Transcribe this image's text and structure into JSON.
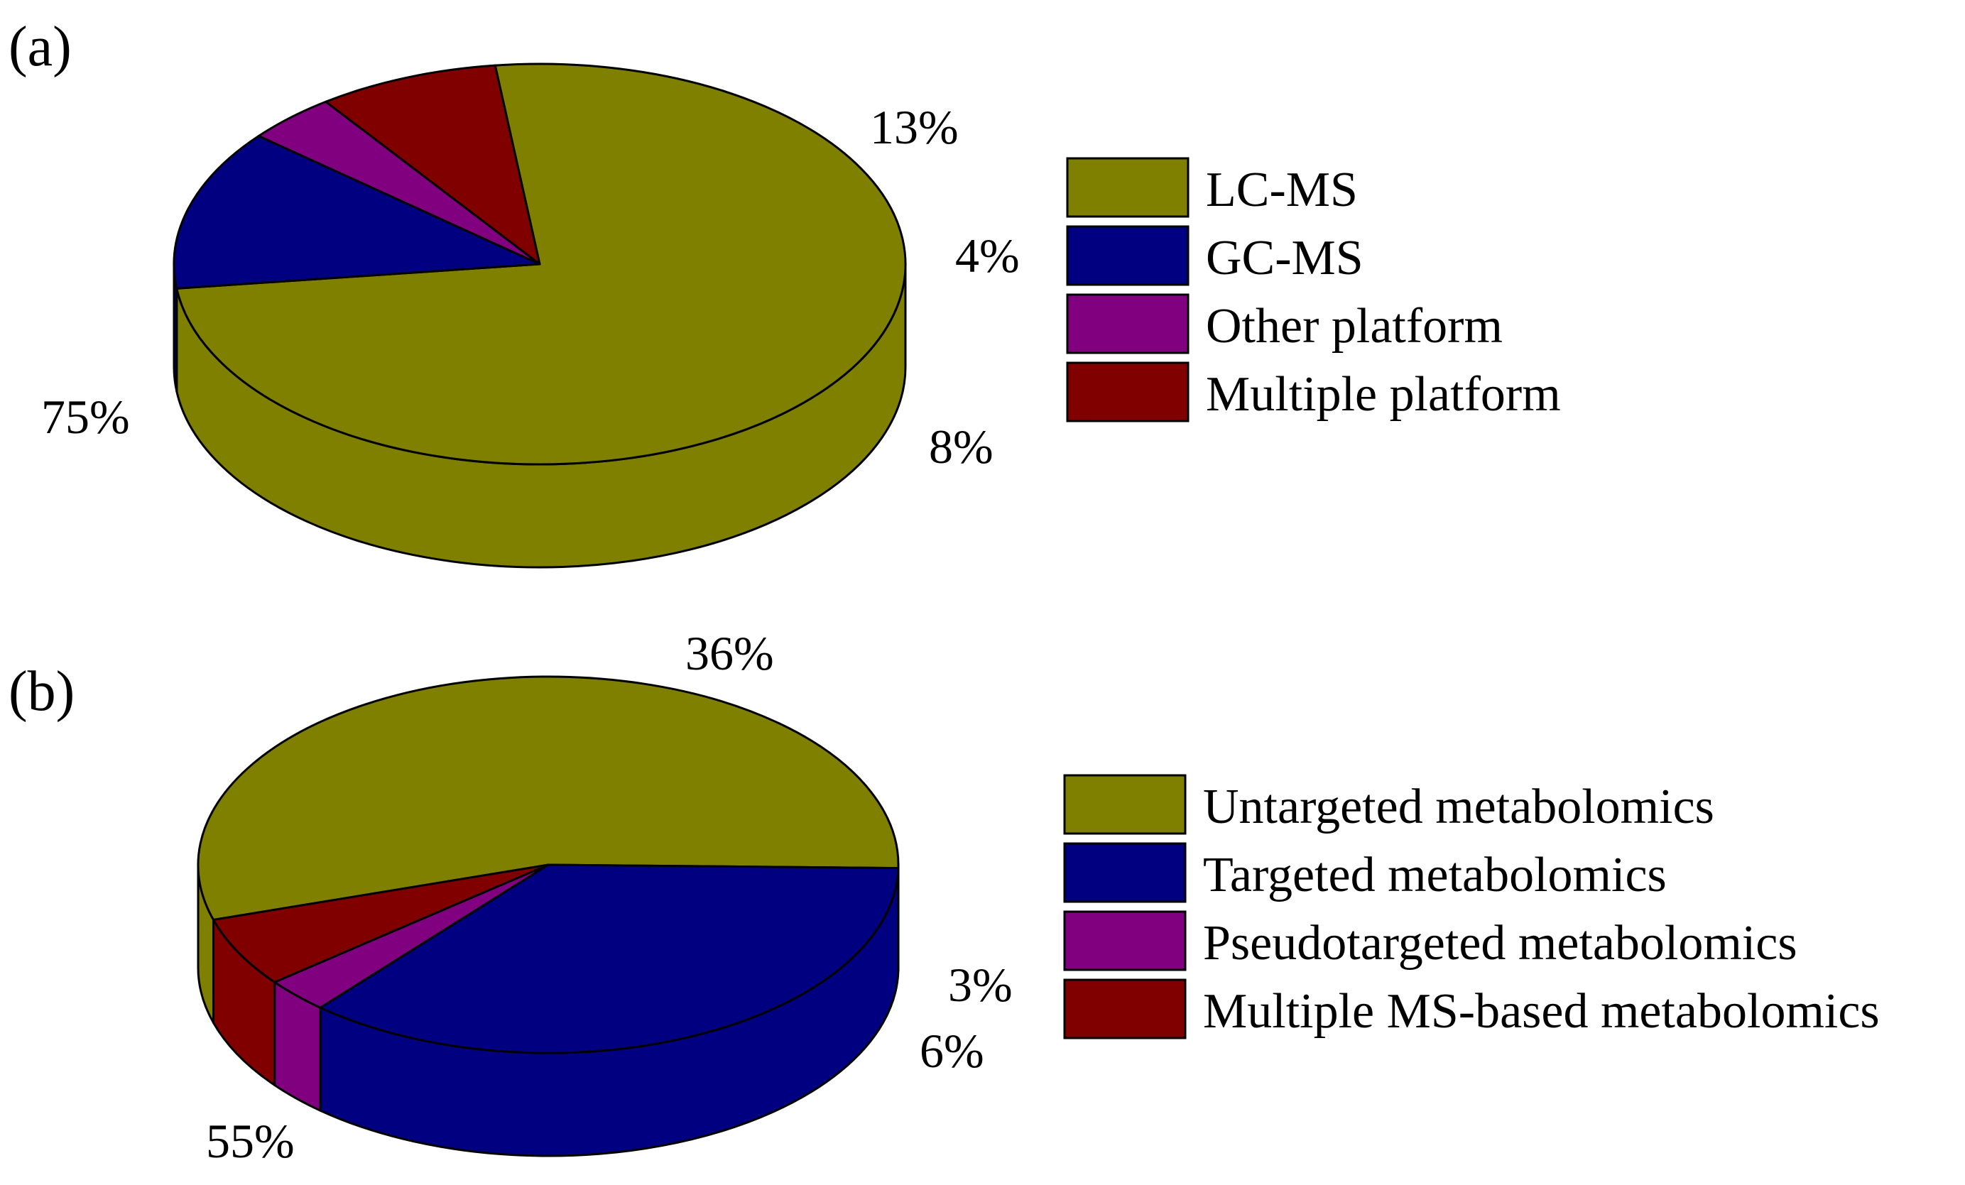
{
  "chart_data": [
    {
      "type": "pie",
      "panel_label": "(a)",
      "style": "3d",
      "legend_position": "right",
      "slices": [
        {
          "label": "LC-MS",
          "value": 75,
          "value_label": "75%",
          "color": "#808000"
        },
        {
          "label": "GC-MS",
          "value": 13,
          "value_label": "13%",
          "color": "#000080"
        },
        {
          "label": "Other platform",
          "value": 4,
          "value_label": "4%",
          "color": "#800080"
        },
        {
          "label": "Multiple platform",
          "value": 8,
          "value_label": "8%",
          "color": "#800000"
        }
      ]
    },
    {
      "type": "pie",
      "panel_label": "(b)",
      "style": "3d",
      "legend_position": "right",
      "slices": [
        {
          "label": "Untargeted metabolomics",
          "value": 55,
          "value_label": "55%",
          "color": "#808000"
        },
        {
          "label": "Targeted metabolomics",
          "value": 36,
          "value_label": "36%",
          "color": "#000080"
        },
        {
          "label": "Pseudotargeted metabolomics",
          "value": 3,
          "value_label": "3%",
          "color": "#800080"
        },
        {
          "label": "Multiple MS-based metabolomics",
          "value": 6,
          "value_label": "6%",
          "color": "#800000"
        }
      ]
    }
  ]
}
